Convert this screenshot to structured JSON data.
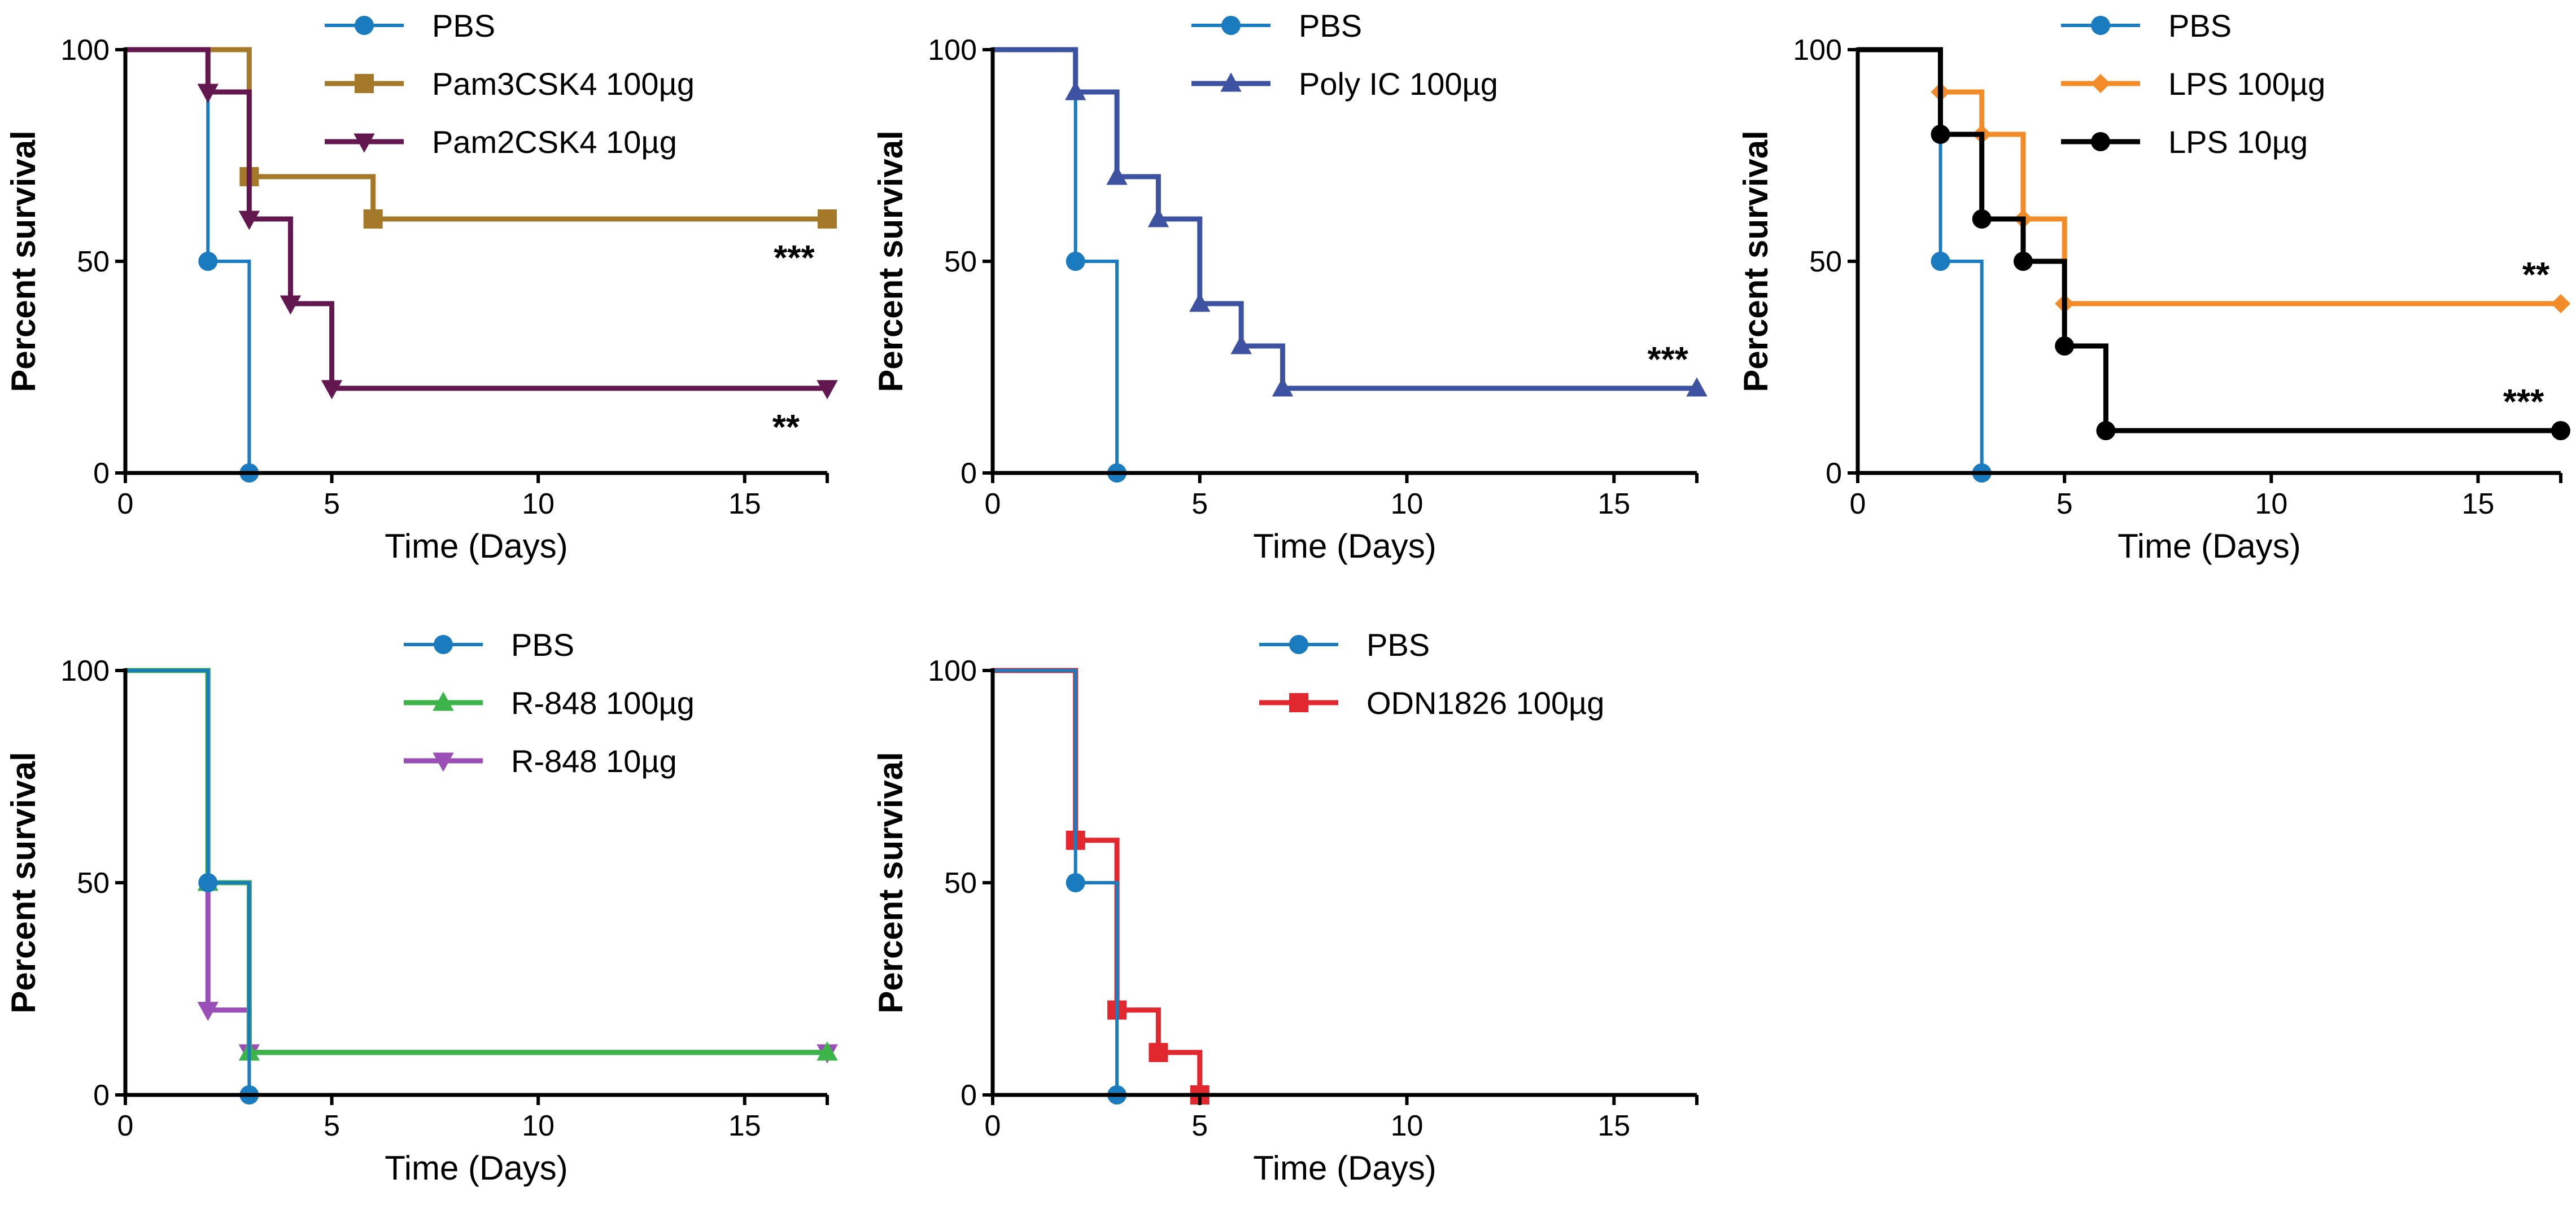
{
  "chart_data": [
    {
      "type": "line",
      "subtype": "kaplan-meier",
      "xlabel": "Time (Days)",
      "ylabel": "Percent survival",
      "xlim": [
        0,
        17
      ],
      "ylim": [
        0,
        100
      ],
      "xticks": [
        "0",
        "5",
        "10",
        "15"
      ],
      "yticks": [
        "0",
        "50",
        "100"
      ],
      "series": [
        {
          "name": "PBS",
          "color": "#1b7bbf",
          "marker": "circle",
          "steps": [
            [
              0,
              100
            ],
            [
              2,
              50
            ],
            [
              3,
              0
            ]
          ],
          "markers": [
            [
              2,
              50
            ],
            [
              3,
              0
            ]
          ]
        },
        {
          "name": "Pam3CSK4 100µg",
          "color": "#a47a2a",
          "marker": "square",
          "steps": [
            [
              0,
              100
            ],
            [
              3,
              70
            ],
            [
              6,
              60
            ],
            [
              17,
              60
            ]
          ],
          "markers": [
            [
              3,
              70
            ],
            [
              6,
              60
            ],
            [
              17,
              60
            ]
          ]
        },
        {
          "name": "Pam2CSK4 10µg",
          "color": "#62184f",
          "marker": "triangle-down",
          "steps": [
            [
              0,
              100
            ],
            [
              2,
              90
            ],
            [
              3,
              60
            ],
            [
              4,
              40
            ],
            [
              5,
              20
            ],
            [
              17,
              20
            ]
          ],
          "markers": [
            [
              2,
              90
            ],
            [
              3,
              60
            ],
            [
              4,
              40
            ],
            [
              5,
              20
            ],
            [
              17,
              20
            ]
          ]
        }
      ],
      "annotations": [
        {
          "text": "***",
          "x": 16.2,
          "y": 48
        },
        {
          "text": "**",
          "x": 16.0,
          "y": 8
        }
      ]
    },
    {
      "type": "line",
      "subtype": "kaplan-meier",
      "xlabel": "Time (Days)",
      "ylabel": "Percent survival",
      "xlim": [
        0,
        17
      ],
      "ylim": [
        0,
        100
      ],
      "xticks": [
        "0",
        "5",
        "10",
        "15"
      ],
      "yticks": [
        "0",
        "50",
        "100"
      ],
      "series": [
        {
          "name": "PBS",
          "color": "#1b7bbf",
          "marker": "circle",
          "steps": [
            [
              0,
              100
            ],
            [
              2,
              50
            ],
            [
              3,
              0
            ]
          ],
          "markers": [
            [
              2,
              50
            ],
            [
              3,
              0
            ]
          ]
        },
        {
          "name": "Poly IC 100µg",
          "color": "#3d52a1",
          "marker": "triangle-up",
          "steps": [
            [
              0,
              100
            ],
            [
              2,
              90
            ],
            [
              3,
              70
            ],
            [
              4,
              60
            ],
            [
              5,
              40
            ],
            [
              6,
              30
            ],
            [
              7,
              20
            ],
            [
              17,
              20
            ]
          ],
          "markers": [
            [
              2,
              90
            ],
            [
              3,
              70
            ],
            [
              4,
              60
            ],
            [
              5,
              40
            ],
            [
              6,
              30
            ],
            [
              7,
              20
            ],
            [
              17,
              20
            ]
          ]
        }
      ],
      "annotations": [
        {
          "text": "***",
          "x": 16.3,
          "y": 24
        }
      ]
    },
    {
      "type": "line",
      "subtype": "kaplan-meier",
      "xlabel": "Time (Days)",
      "ylabel": "Percent survival",
      "xlim": [
        0,
        17
      ],
      "ylim": [
        0,
        100
      ],
      "xticks": [
        "0",
        "5",
        "10",
        "15"
      ],
      "yticks": [
        "0",
        "50",
        "100"
      ],
      "series": [
        {
          "name": "PBS",
          "color": "#1b7bbf",
          "marker": "circle",
          "steps": [
            [
              0,
              100
            ],
            [
              2,
              50
            ],
            [
              3,
              0
            ]
          ],
          "markers": [
            [
              2,
              50
            ],
            [
              3,
              0
            ]
          ]
        },
        {
          "name": "LPS 100µg",
          "color": "#f28c28",
          "marker": "diamond",
          "steps": [
            [
              0,
              100
            ],
            [
              2,
              90
            ],
            [
              3,
              80
            ],
            [
              4,
              60
            ],
            [
              5,
              40
            ],
            [
              17,
              40
            ]
          ],
          "markers": [
            [
              2,
              90
            ],
            [
              3,
              80
            ],
            [
              4,
              60
            ],
            [
              5,
              40
            ],
            [
              17,
              40
            ]
          ]
        },
        {
          "name": "LPS 10µg",
          "color": "#000000",
          "marker": "circle",
          "steps": [
            [
              0,
              100
            ],
            [
              2,
              80
            ],
            [
              3,
              60
            ],
            [
              4,
              50
            ],
            [
              5,
              30
            ],
            [
              6,
              10
            ],
            [
              17,
              10
            ]
          ],
          "markers": [
            [
              2,
              80
            ],
            [
              3,
              60
            ],
            [
              4,
              50
            ],
            [
              5,
              30
            ],
            [
              6,
              10
            ],
            [
              17,
              10
            ]
          ]
        }
      ],
      "annotations": [
        {
          "text": "**",
          "x": 16.4,
          "y": 44
        },
        {
          "text": "***",
          "x": 16.1,
          "y": 14
        }
      ]
    },
    {
      "type": "line",
      "subtype": "kaplan-meier",
      "xlabel": "Time (Days)",
      "ylabel": "Percent survival",
      "xlim": [
        0,
        17
      ],
      "ylim": [
        0,
        100
      ],
      "xticks": [
        "0",
        "5",
        "10",
        "15"
      ],
      "yticks": [
        "0",
        "50",
        "100"
      ],
      "series": [
        {
          "name": "R-848 10µg",
          "color": "#9a4fb6",
          "marker": "triangle-down",
          "steps": [
            [
              0,
              100
            ],
            [
              2,
              20
            ],
            [
              3,
              10
            ],
            [
              17,
              10
            ]
          ],
          "markers": [
            [
              2,
              20
            ],
            [
              3,
              10
            ],
            [
              17,
              10
            ]
          ]
        },
        {
          "name": "R-848 100µg",
          "color": "#3cb449",
          "marker": "triangle-up",
          "steps": [
            [
              0,
              100
            ],
            [
              2,
              50
            ],
            [
              3,
              10
            ],
            [
              17,
              10
            ]
          ],
          "markers": [
            [
              2,
              50
            ],
            [
              3,
              10
            ],
            [
              17,
              10
            ]
          ]
        },
        {
          "name": "PBS",
          "color": "#1b7bbf",
          "marker": "circle",
          "steps": [
            [
              0,
              100
            ],
            [
              2,
              50
            ],
            [
              3,
              0
            ]
          ],
          "markers": [
            [
              2,
              50
            ],
            [
              3,
              0
            ]
          ]
        }
      ],
      "legend_order": [
        2,
        1,
        0
      ],
      "annotations": []
    },
    {
      "type": "line",
      "subtype": "kaplan-meier",
      "xlabel": "Time (Days)",
      "ylabel": "Percent survival",
      "xlim": [
        0,
        17
      ],
      "ylim": [
        0,
        100
      ],
      "xticks": [
        "0",
        "5",
        "10",
        "15"
      ],
      "yticks": [
        "0",
        "50",
        "100"
      ],
      "series": [
        {
          "name": "ODN1826 100µg",
          "color": "#e0282e",
          "marker": "square",
          "steps": [
            [
              0,
              100
            ],
            [
              2,
              60
            ],
            [
              3,
              20
            ],
            [
              4,
              10
            ],
            [
              5,
              0
            ]
          ],
          "markers": [
            [
              2,
              60
            ],
            [
              3,
              20
            ],
            [
              4,
              10
            ],
            [
              5,
              0
            ]
          ]
        },
        {
          "name": "PBS",
          "color": "#1b7bbf",
          "marker": "circle",
          "steps": [
            [
              0,
              100
            ],
            [
              2,
              50
            ],
            [
              3,
              0
            ]
          ],
          "markers": [
            [
              2,
              50
            ],
            [
              3,
              0
            ]
          ]
        }
      ],
      "legend_order": [
        1,
        0
      ],
      "annotations": []
    }
  ]
}
